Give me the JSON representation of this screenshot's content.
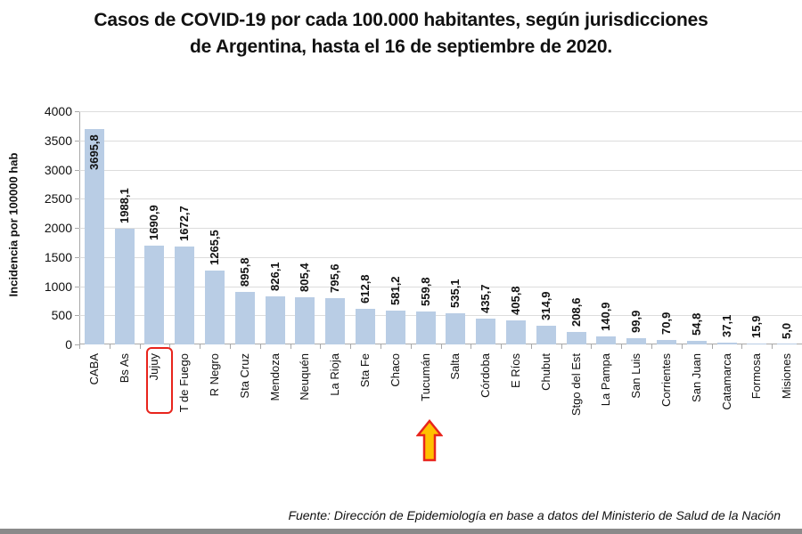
{
  "title_line1": "Casos de COVID-19 por cada 100.000 habitantes, según jurisdicciones",
  "title_line2": "de Argentina, hasta el 16 de septiembre de 2020.",
  "ylabel": "Incidencia por 100000 hab",
  "source": "Fuente: Dirección de Epidemiología en base a datos del Ministerio de Salud de la Nación",
  "colors": {
    "bar": "#b9cde5",
    "highlight_box": "#e8241c",
    "arrow_fill": "#ffc000",
    "arrow_stroke": "#e8241c"
  },
  "annotations": {
    "boxed_category": "Jujuy",
    "arrow_category": "Tucumán"
  },
  "yticks": [
    "0",
    "500",
    "1000",
    "1500",
    "2000",
    "2500",
    "3000",
    "3500",
    "4000"
  ],
  "chart_data": {
    "type": "bar",
    "title": "Casos de COVID-19 por cada 100.000 habitantes, según jurisdicciones de Argentina, hasta el 16 de septiembre de 2020.",
    "xlabel": "",
    "ylabel": "Incidencia por 100000 hab",
    "ylim": [
      0,
      4000
    ],
    "ytick_step": 500,
    "grid": true,
    "legend": null,
    "categories": [
      "CABA",
      "Bs As",
      "Jujuy",
      "T de Fuego",
      "R Negro",
      "Sta Cruz",
      "Mendoza",
      "Neuquén",
      "La Rioja",
      "Sta Fe",
      "Chaco",
      "Tucumán",
      "Salta",
      "Córdoba",
      "E Ríos",
      "Chubut",
      "Stgo del Est",
      "La Pampa",
      "San Luis",
      "Corrientes",
      "San Juan",
      "Catamarca",
      "Formosa",
      "Misiones"
    ],
    "values": [
      3695.8,
      1988.1,
      1690.9,
      1672.7,
      1265.5,
      895.8,
      826.1,
      805.4,
      795.6,
      612.8,
      581.2,
      559.8,
      535.1,
      435.7,
      405.8,
      314.9,
      208.6,
      140.9,
      99.9,
      70.9,
      54.8,
      37.1,
      15.9,
      5.0
    ],
    "value_labels": [
      "3695,8",
      "1988,1",
      "1690,9",
      "1672,7",
      "1265,5",
      "895,8",
      "826,1",
      "805,4",
      "795,6",
      "612,8",
      "581,2",
      "559,8",
      "535,1",
      "435,7",
      "405,8",
      "314,9",
      "208,6",
      "140,9",
      "99,9",
      "70,9",
      "54,8",
      "37,1",
      "15,9",
      "5,0"
    ],
    "annotations": [
      "Jujuy label boxed in red",
      "Orange arrow pointing to Tucumán"
    ],
    "source": "Fuente: Dirección de Epidemiología en base a datos del Ministerio de Salud de la Nación"
  }
}
